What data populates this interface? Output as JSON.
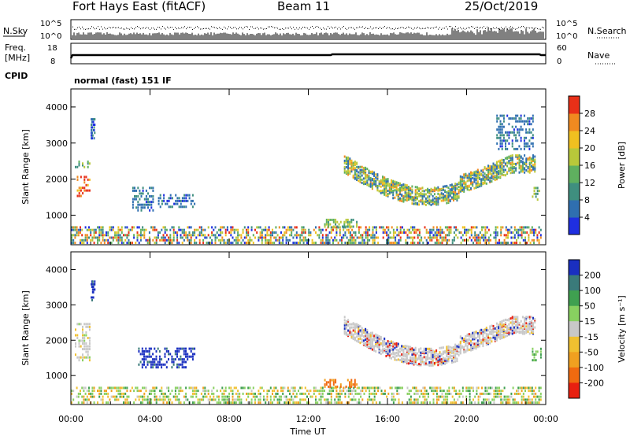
{
  "header": {
    "title": "Fort Hays East (fitACF)",
    "beam": "Beam 11",
    "date": "25/Oct/2019"
  },
  "top_panels": {
    "noise": {
      "left_label": "N.Sky",
      "right_label": "N.Search",
      "left_ticks": [
        "10^5",
        "10^0"
      ],
      "right_ticks": [
        "10^5",
        "10^0"
      ]
    },
    "freq": {
      "left_label_1": "Freq.",
      "left_label_2": "[MHz]",
      "right_label": "Nave",
      "left_ticks": [
        "18",
        "8"
      ],
      "right_ticks": [
        "60",
        "0"
      ]
    },
    "cpid": {
      "label": "CPID",
      "text": "normal (fast) 151 IF"
    }
  },
  "chart_data": [
    {
      "type": "heatmap",
      "name": "power-panel",
      "ylabel": "Slant Range [km]",
      "xlabel": "",
      "x_ticks": [
        "00:00",
        "04:00",
        "08:00",
        "12:00",
        "16:00",
        "20:00",
        "00:00"
      ],
      "y_ticks": [
        "1000",
        "2000",
        "3000",
        "4000"
      ],
      "xlim_hours": [
        0,
        24
      ],
      "ylim_km": [
        180,
        4500
      ],
      "colorbar": {
        "label": "Power [dB]",
        "ticks": [
          "4",
          "8",
          "12",
          "16",
          "20",
          "24",
          "28"
        ],
        "range": [
          0,
          30
        ],
        "colors": [
          "#1f2fe0",
          "#2f6fb0",
          "#3f8f7f",
          "#5fb05f",
          "#b8c83a",
          "#f0c020",
          "#f08a20",
          "#e83018"
        ]
      },
      "regions": [
        {
          "t0": 0.0,
          "t1": 23.8,
          "r0": 200,
          "r1": 700,
          "level": "mixed"
        },
        {
          "t0": 0.3,
          "t1": 1.0,
          "r0": 1500,
          "r1": 2100,
          "level": "high"
        },
        {
          "t0": 0.2,
          "t1": 1.0,
          "r0": 2300,
          "r1": 2500,
          "level": "mid"
        },
        {
          "t0": 1.0,
          "t1": 1.2,
          "r0": 3100,
          "r1": 3700,
          "level": "low"
        },
        {
          "t0": 3.1,
          "t1": 4.2,
          "r0": 1100,
          "r1": 1800,
          "level": "low"
        },
        {
          "t0": 4.4,
          "t1": 6.3,
          "r0": 1200,
          "r1": 1600,
          "level": "low"
        },
        {
          "t0": 13.8,
          "t1": 23.5,
          "r0": 1300,
          "r1": 2600,
          "level": "arc"
        },
        {
          "t0": 21.5,
          "t1": 23.4,
          "r0": 2800,
          "r1": 3800,
          "level": "low"
        },
        {
          "t0": 23.3,
          "t1": 23.8,
          "r0": 1400,
          "r1": 1800,
          "level": "mid"
        },
        {
          "t0": 12.8,
          "t1": 14.5,
          "r0": 650,
          "r1": 900,
          "level": "mid"
        }
      ]
    },
    {
      "type": "heatmap",
      "name": "velocity-panel",
      "ylabel": "Slant Range [km]",
      "xlabel": "Time UT",
      "x_ticks": [
        "00:00",
        "04:00",
        "08:00",
        "12:00",
        "16:00",
        "20:00",
        "00:00"
      ],
      "y_ticks": [
        "1000",
        "2000",
        "3000",
        "4000"
      ],
      "xlim_hours": [
        0,
        24
      ],
      "ylim_km": [
        180,
        4500
      ],
      "colorbar": {
        "label": "Velocity [m s⁻¹]",
        "ticks": [
          "200",
          "100",
          "50",
          "15",
          "-15",
          "-50",
          "-100",
          "-200"
        ],
        "range": [
          -250,
          250
        ],
        "colors": [
          "#1a2fc0",
          "#3a7a7a",
          "#3fa050",
          "#88d060",
          "#c8c8c8",
          "#f0c030",
          "#f0a020",
          "#f06a10",
          "#e82010"
        ]
      },
      "regions": [
        {
          "t0": 0.0,
          "t1": 23.8,
          "r0": 200,
          "r1": 700,
          "level": "green-orange"
        },
        {
          "t0": 0.2,
          "t1": 1.0,
          "r0": 1400,
          "r1": 2500,
          "level": "grey"
        },
        {
          "t0": 1.0,
          "t1": 1.2,
          "r0": 3100,
          "r1": 3700,
          "level": "blue"
        },
        {
          "t0": 3.4,
          "t1": 6.3,
          "r0": 1200,
          "r1": 1800,
          "level": "blue"
        },
        {
          "t0": 13.8,
          "t1": 23.5,
          "r0": 1300,
          "r1": 2600,
          "level": "grey-arc"
        },
        {
          "t0": 23.3,
          "t1": 23.8,
          "r0": 1400,
          "r1": 1800,
          "level": "green"
        },
        {
          "t0": 12.8,
          "t1": 14.5,
          "r0": 650,
          "r1": 900,
          "level": "orange"
        }
      ]
    }
  ]
}
